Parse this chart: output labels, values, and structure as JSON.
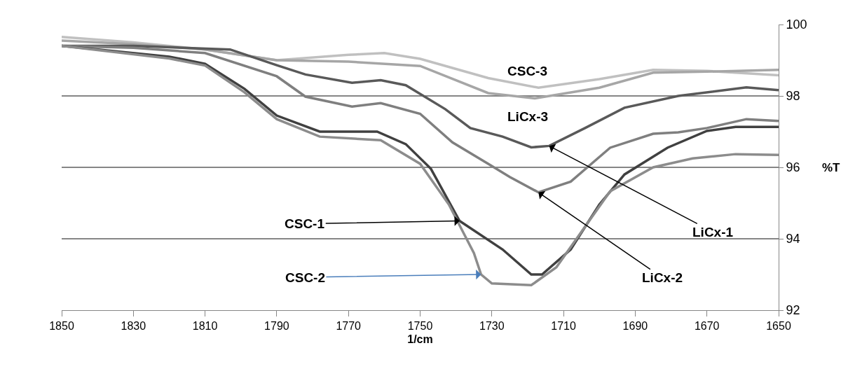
{
  "chart_data": {
    "type": "line",
    "xlabel": "1/cm",
    "ylabel": "%T",
    "xlim": [
      1850,
      1650
    ],
    "xticks": [
      1850,
      1830,
      1810,
      1790,
      1770,
      1750,
      1730,
      1710,
      1690,
      1670,
      1650
    ],
    "ylim": [
      92,
      100
    ],
    "yticks": [
      92,
      94,
      96,
      98,
      100
    ],
    "grid": "y",
    "marker": "none",
    "line_style": "solid",
    "series": [
      {
        "color": "#c0c0c0",
        "x": [
          1850,
          1830,
          1810,
          1790,
          1770,
          1760,
          1750,
          1731,
          1717,
          1700,
          1685,
          1670,
          1650
        ],
        "values": [
          99.65,
          99.5,
          99.3,
          99.0,
          99.15,
          99.2,
          99.04,
          98.5,
          98.23,
          98.47,
          98.73,
          98.7,
          98.58
        ]
      },
      {
        "color": "#a6a6a6",
        "x": [
          1850,
          1830,
          1810,
          1790,
          1770,
          1750,
          1731,
          1718,
          1700,
          1685,
          1670,
          1650
        ],
        "values": [
          99.55,
          99.45,
          99.3,
          99.0,
          98.96,
          98.84,
          98.08,
          97.93,
          98.23,
          98.65,
          98.68,
          98.73
        ]
      },
      {
        "color": "#595959",
        "x": [
          1850,
          1830,
          1803,
          1790,
          1782,
          1769,
          1761,
          1754,
          1743,
          1736,
          1727,
          1719,
          1714,
          1704,
          1693,
          1678,
          1659,
          1650
        ],
        "values": [
          99.4,
          99.4,
          99.3,
          98.86,
          98.6,
          98.37,
          98.44,
          98.3,
          97.63,
          97.1,
          96.86,
          96.56,
          96.6,
          97.1,
          97.67,
          98.0,
          98.24,
          98.16
        ]
      },
      {
        "color": "#7f7f7f",
        "x": [
          1850,
          1830,
          1810,
          1790,
          1782,
          1769,
          1761,
          1750,
          1741,
          1731,
          1725,
          1717,
          1708,
          1697,
          1685,
          1678,
          1670,
          1659,
          1650
        ],
        "values": [
          99.4,
          99.35,
          99.2,
          98.55,
          97.98,
          97.7,
          97.8,
          97.5,
          96.7,
          96.1,
          95.73,
          95.3,
          95.6,
          96.55,
          96.94,
          96.98,
          97.1,
          97.35,
          97.3
        ]
      },
      {
        "color": "#404040",
        "x": [
          1850,
          1820,
          1810,
          1799,
          1790,
          1778,
          1762,
          1754,
          1747,
          1739,
          1727,
          1719,
          1716,
          1708,
          1700,
          1693,
          1681,
          1670,
          1662,
          1650
        ],
        "values": [
          99.4,
          99.1,
          98.9,
          98.2,
          97.45,
          97.0,
          97.0,
          96.65,
          95.96,
          94.5,
          93.7,
          93.0,
          93.0,
          93.7,
          94.96,
          95.8,
          96.55,
          97.02,
          97.13,
          97.13
        ]
      },
      {
        "color": "#8c8c8c",
        "x": [
          1850,
          1820,
          1810,
          1799,
          1790,
          1778,
          1761,
          1750,
          1742,
          1735,
          1733,
          1730,
          1719,
          1712,
          1704,
          1697,
          1685,
          1674,
          1662,
          1650
        ],
        "values": [
          99.4,
          99.05,
          98.85,
          98.1,
          97.35,
          96.86,
          96.76,
          96.1,
          94.96,
          93.6,
          93.0,
          92.75,
          92.7,
          93.2,
          94.34,
          95.33,
          96.0,
          96.25,
          96.37,
          96.35
        ]
      }
    ],
    "annotations": [
      {
        "text": "CSC-3",
        "x": 1720,
        "y": 98.23
      },
      {
        "text": "LiCx-3",
        "x": 1720,
        "y": 97.93
      },
      {
        "text": "CSC-1",
        "x": 1739,
        "y": 94.5
      },
      {
        "text": "CSC-2",
        "x": 1733,
        "y": 93.0
      },
      {
        "text": "LiCx-1",
        "x": 1714,
        "y": 96.6
      },
      {
        "text": "LiCx-2",
        "x": 1717,
        "y": 95.3
      }
    ]
  }
}
